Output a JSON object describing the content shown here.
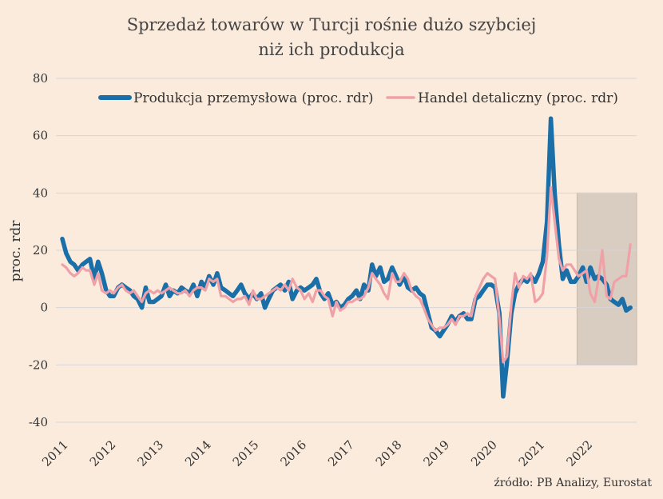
{
  "chart_data": {
    "type": "line",
    "title": [
      "Sprzedaż towarów w Turcji rośnie dużo szybciej",
      "niż ich produkcja"
    ],
    "ylabel": "proc. rdr",
    "xlabel": "",
    "ylim": [
      -40,
      80
    ],
    "yticks": [
      -40,
      -20,
      0,
      20,
      40,
      60,
      80
    ],
    "ytick_labels": [
      "-40",
      "-20",
      "0",
      "20",
      "40",
      "60",
      "80"
    ],
    "xlim": [
      2011,
      2023.05
    ],
    "xticks": [
      2011,
      2012,
      2013,
      2014,
      2015,
      2016,
      2017,
      2018,
      2019,
      2020,
      2021,
      2022
    ],
    "xtick_labels": [
      "2011",
      "2012",
      "2013",
      "2014",
      "2015",
      "2016",
      "2017",
      "2018",
      "2019",
      "2020",
      "2021",
      "2022"
    ],
    "grid": true,
    "legend_position": "top",
    "highlight_region": {
      "x": [
        2021.8,
        2023.05
      ],
      "y": [
        -20,
        40
      ],
      "color": "#d9ccc0"
    },
    "source": "źródło: PB Analizy, Eurostat",
    "series": [
      {
        "name": "Produkcja przemysłowa (proc. rdr)",
        "color": "#1a6fa8",
        "points": [
          [
            2011.0,
            24
          ],
          [
            2011.08,
            19
          ],
          [
            2011.17,
            16
          ],
          [
            2011.25,
            15
          ],
          [
            2011.33,
            13
          ],
          [
            2011.42,
            15
          ],
          [
            2011.5,
            16
          ],
          [
            2011.58,
            17
          ],
          [
            2011.67,
            10
          ],
          [
            2011.75,
            16
          ],
          [
            2011.83,
            12
          ],
          [
            2011.92,
            6
          ],
          [
            2012.0,
            4
          ],
          [
            2012.08,
            4
          ],
          [
            2012.17,
            7
          ],
          [
            2012.25,
            8
          ],
          [
            2012.33,
            7
          ],
          [
            2012.42,
            6
          ],
          [
            2012.5,
            4
          ],
          [
            2012.58,
            3
          ],
          [
            2012.67,
            0
          ],
          [
            2012.75,
            7
          ],
          [
            2012.83,
            2
          ],
          [
            2012.92,
            2
          ],
          [
            2013.0,
            3
          ],
          [
            2013.08,
            4
          ],
          [
            2013.17,
            8
          ],
          [
            2013.25,
            4
          ],
          [
            2013.33,
            6
          ],
          [
            2013.42,
            5
          ],
          [
            2013.5,
            7
          ],
          [
            2013.58,
            6
          ],
          [
            2013.67,
            5
          ],
          [
            2013.75,
            8
          ],
          [
            2013.83,
            4
          ],
          [
            2013.92,
            9
          ],
          [
            2014.0,
            7
          ],
          [
            2014.08,
            11
          ],
          [
            2014.17,
            8
          ],
          [
            2014.25,
            12
          ],
          [
            2014.33,
            7
          ],
          [
            2014.42,
            6
          ],
          [
            2014.5,
            5
          ],
          [
            2014.58,
            4
          ],
          [
            2014.67,
            6
          ],
          [
            2014.75,
            8
          ],
          [
            2014.83,
            5
          ],
          [
            2014.92,
            3
          ],
          [
            2015.0,
            5
          ],
          [
            2015.08,
            3
          ],
          [
            2015.17,
            5
          ],
          [
            2015.25,
            0
          ],
          [
            2015.33,
            3
          ],
          [
            2015.42,
            6
          ],
          [
            2015.5,
            7
          ],
          [
            2015.58,
            8
          ],
          [
            2015.67,
            6
          ],
          [
            2015.75,
            9
          ],
          [
            2015.83,
            3
          ],
          [
            2015.92,
            6
          ],
          [
            2016.0,
            7
          ],
          [
            2016.08,
            6
          ],
          [
            2016.17,
            7
          ],
          [
            2016.25,
            8
          ],
          [
            2016.33,
            10
          ],
          [
            2016.42,
            5
          ],
          [
            2016.5,
            3
          ],
          [
            2016.58,
            5
          ],
          [
            2016.67,
            1
          ],
          [
            2016.75,
            2
          ],
          [
            2016.83,
            0
          ],
          [
            2016.92,
            1
          ],
          [
            2017.0,
            3
          ],
          [
            2017.08,
            4
          ],
          [
            2017.17,
            6
          ],
          [
            2017.25,
            3
          ],
          [
            2017.33,
            8
          ],
          [
            2017.42,
            6
          ],
          [
            2017.5,
            15
          ],
          [
            2017.58,
            11
          ],
          [
            2017.67,
            14
          ],
          [
            2017.75,
            9
          ],
          [
            2017.83,
            10
          ],
          [
            2017.92,
            14
          ],
          [
            2018.0,
            11
          ],
          [
            2018.08,
            8
          ],
          [
            2018.17,
            11
          ],
          [
            2018.25,
            7
          ],
          [
            2018.33,
            6
          ],
          [
            2018.42,
            7
          ],
          [
            2018.5,
            5
          ],
          [
            2018.58,
            4
          ],
          [
            2018.67,
            -2
          ],
          [
            2018.75,
            -7
          ],
          [
            2018.83,
            -8
          ],
          [
            2018.92,
            -10
          ],
          [
            2019.0,
            -8
          ],
          [
            2019.08,
            -6
          ],
          [
            2019.17,
            -3
          ],
          [
            2019.25,
            -5
          ],
          [
            2019.33,
            -3
          ],
          [
            2019.42,
            -2
          ],
          [
            2019.5,
            -4
          ],
          [
            2019.58,
            -4
          ],
          [
            2019.67,
            3
          ],
          [
            2019.75,
            4
          ],
          [
            2019.83,
            6
          ],
          [
            2019.92,
            8
          ],
          [
            2020.0,
            8
          ],
          [
            2020.08,
            7
          ],
          [
            2020.17,
            -2
          ],
          [
            2020.25,
            -31
          ],
          [
            2020.33,
            -19
          ],
          [
            2020.42,
            -2
          ],
          [
            2020.5,
            5
          ],
          [
            2020.58,
            8
          ],
          [
            2020.67,
            10
          ],
          [
            2020.75,
            9
          ],
          [
            2020.83,
            11
          ],
          [
            2020.92,
            9
          ],
          [
            2021.0,
            12
          ],
          [
            2021.08,
            16
          ],
          [
            2021.17,
            30
          ],
          [
            2021.25,
            66
          ],
          [
            2021.33,
            40
          ],
          [
            2021.42,
            22
          ],
          [
            2021.5,
            10
          ],
          [
            2021.58,
            13
          ],
          [
            2021.67,
            9
          ],
          [
            2021.75,
            9
          ],
          [
            2021.83,
            11
          ],
          [
            2021.92,
            14
          ],
          [
            2022.0,
            9
          ],
          [
            2022.08,
            14
          ],
          [
            2022.17,
            10
          ],
          [
            2022.25,
            11
          ],
          [
            2022.33,
            10
          ],
          [
            2022.42,
            8
          ],
          [
            2022.5,
            3
          ],
          [
            2022.58,
            2
          ],
          [
            2022.67,
            1
          ],
          [
            2022.75,
            3
          ],
          [
            2022.83,
            -1
          ],
          [
            2022.92,
            0
          ]
        ]
      },
      {
        "name": "Handel detaliczny (proc. rdr)",
        "color": "#f0a1a8",
        "points": [
          [
            2011.0,
            15
          ],
          [
            2011.08,
            14
          ],
          [
            2011.17,
            12
          ],
          [
            2011.25,
            11
          ],
          [
            2011.33,
            12
          ],
          [
            2011.42,
            14
          ],
          [
            2011.5,
            13
          ],
          [
            2011.58,
            13
          ],
          [
            2011.67,
            8
          ],
          [
            2011.75,
            12
          ],
          [
            2011.83,
            6
          ],
          [
            2011.92,
            5
          ],
          [
            2012.0,
            6
          ],
          [
            2012.08,
            5
          ],
          [
            2012.17,
            7
          ],
          [
            2012.25,
            8
          ],
          [
            2012.33,
            6
          ],
          [
            2012.42,
            5
          ],
          [
            2012.5,
            6
          ],
          [
            2012.58,
            4
          ],
          [
            2012.67,
            2
          ],
          [
            2012.75,
            5
          ],
          [
            2012.83,
            6
          ],
          [
            2012.92,
            5
          ],
          [
            2013.0,
            6
          ],
          [
            2013.08,
            5
          ],
          [
            2013.17,
            6
          ],
          [
            2013.25,
            7
          ],
          [
            2013.33,
            6
          ],
          [
            2013.42,
            5
          ],
          [
            2013.5,
            5
          ],
          [
            2013.58,
            6
          ],
          [
            2013.67,
            4
          ],
          [
            2013.75,
            6
          ],
          [
            2013.83,
            7
          ],
          [
            2013.92,
            7
          ],
          [
            2014.0,
            6
          ],
          [
            2014.08,
            10
          ],
          [
            2014.17,
            9
          ],
          [
            2014.25,
            10
          ],
          [
            2014.33,
            4
          ],
          [
            2014.42,
            4
          ],
          [
            2014.5,
            3
          ],
          [
            2014.58,
            2
          ],
          [
            2014.67,
            3
          ],
          [
            2014.75,
            3
          ],
          [
            2014.83,
            4
          ],
          [
            2014.92,
            1
          ],
          [
            2015.0,
            6
          ],
          [
            2015.08,
            3
          ],
          [
            2015.17,
            3
          ],
          [
            2015.25,
            4
          ],
          [
            2015.33,
            5
          ],
          [
            2015.42,
            6
          ],
          [
            2015.5,
            7
          ],
          [
            2015.58,
            6
          ],
          [
            2015.67,
            8
          ],
          [
            2015.75,
            6
          ],
          [
            2015.83,
            10
          ],
          [
            2015.92,
            7
          ],
          [
            2016.0,
            6
          ],
          [
            2016.08,
            3
          ],
          [
            2016.17,
            5
          ],
          [
            2016.25,
            2
          ],
          [
            2016.33,
            6
          ],
          [
            2016.42,
            6
          ],
          [
            2016.5,
            4
          ],
          [
            2016.58,
            3
          ],
          [
            2016.67,
            -3
          ],
          [
            2016.75,
            2
          ],
          [
            2016.83,
            -1
          ],
          [
            2016.92,
            0
          ],
          [
            2017.0,
            2
          ],
          [
            2017.08,
            2
          ],
          [
            2017.17,
            3
          ],
          [
            2017.25,
            3
          ],
          [
            2017.33,
            4
          ],
          [
            2017.42,
            7
          ],
          [
            2017.5,
            12
          ],
          [
            2017.58,
            10
          ],
          [
            2017.67,
            8
          ],
          [
            2017.75,
            5
          ],
          [
            2017.83,
            3
          ],
          [
            2017.92,
            12
          ],
          [
            2018.0,
            9
          ],
          [
            2018.08,
            9
          ],
          [
            2018.17,
            12
          ],
          [
            2018.25,
            10
          ],
          [
            2018.33,
            6
          ],
          [
            2018.42,
            4
          ],
          [
            2018.5,
            3
          ],
          [
            2018.58,
            0
          ],
          [
            2018.67,
            -4
          ],
          [
            2018.75,
            -6
          ],
          [
            2018.83,
            -8
          ],
          [
            2018.92,
            -7
          ],
          [
            2019.0,
            -7
          ],
          [
            2019.08,
            -6
          ],
          [
            2019.17,
            -4
          ],
          [
            2019.25,
            -6
          ],
          [
            2019.33,
            -3
          ],
          [
            2019.42,
            -3
          ],
          [
            2019.5,
            -2
          ],
          [
            2019.58,
            -3
          ],
          [
            2019.67,
            4
          ],
          [
            2019.75,
            7
          ],
          [
            2019.83,
            10
          ],
          [
            2019.92,
            12
          ],
          [
            2020.0,
            11
          ],
          [
            2020.08,
            10
          ],
          [
            2020.17,
            -4
          ],
          [
            2020.25,
            -19
          ],
          [
            2020.33,
            -17
          ],
          [
            2020.42,
            1
          ],
          [
            2020.5,
            12
          ],
          [
            2020.58,
            7
          ],
          [
            2020.67,
            11
          ],
          [
            2020.75,
            10
          ],
          [
            2020.83,
            12
          ],
          [
            2020.92,
            2
          ],
          [
            2021.0,
            3
          ],
          [
            2021.08,
            5
          ],
          [
            2021.17,
            18
          ],
          [
            2021.25,
            42
          ],
          [
            2021.33,
            30
          ],
          [
            2021.42,
            17
          ],
          [
            2021.5,
            13
          ],
          [
            2021.58,
            15
          ],
          [
            2021.67,
            15
          ],
          [
            2021.75,
            13
          ],
          [
            2021.83,
            11
          ],
          [
            2021.92,
            12
          ],
          [
            2022.0,
            13
          ],
          [
            2022.08,
            5
          ],
          [
            2022.17,
            2
          ],
          [
            2022.25,
            10
          ],
          [
            2022.33,
            20
          ],
          [
            2022.42,
            4
          ],
          [
            2022.5,
            3
          ],
          [
            2022.58,
            9
          ],
          [
            2022.67,
            10
          ],
          [
            2022.75,
            11
          ],
          [
            2022.83,
            11
          ],
          [
            2022.92,
            22
          ]
        ]
      }
    ]
  }
}
